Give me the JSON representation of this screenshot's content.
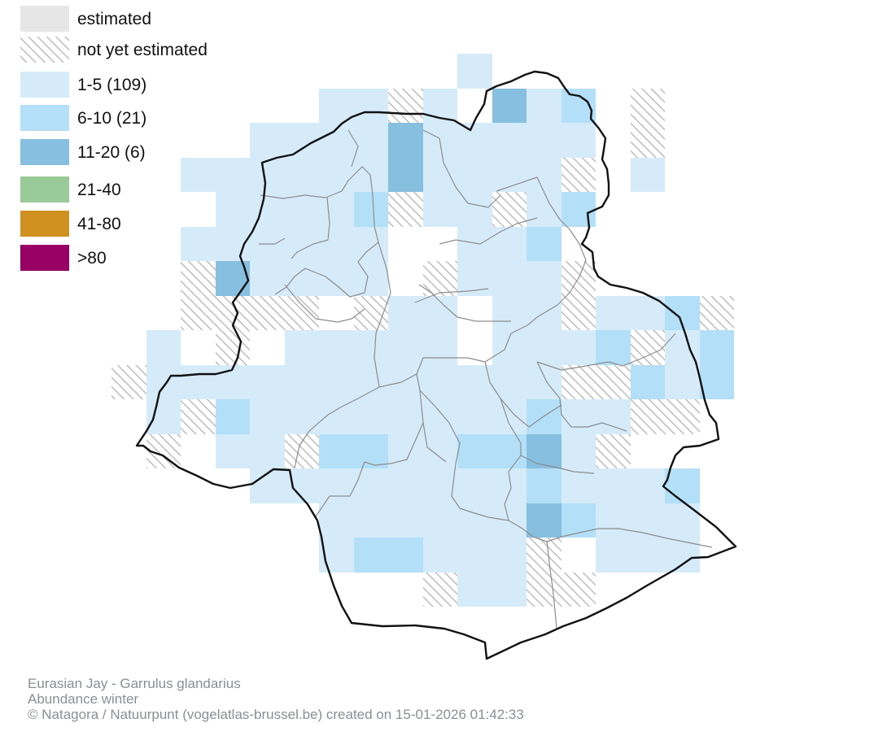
{
  "legend": {
    "items": [
      {
        "label": "estimated",
        "fill": "#e6e6e6",
        "pattern": false
      },
      {
        "label": "not yet estimated",
        "fill": "hatch",
        "pattern": true
      },
      {
        "label": "1-5 (109)",
        "fill": "#d6ebfa",
        "pattern": false
      },
      {
        "label": "6-10 (21)",
        "fill": "#b3e0f8",
        "pattern": false
      },
      {
        "label": "11-20 (6)",
        "fill": "#86bfdf",
        "pattern": false
      },
      {
        "label": "21-40",
        "fill": "#98cb98",
        "pattern": false
      },
      {
        "label": "41-80",
        "fill": "#cf9020",
        "pattern": false
      },
      {
        "label": ">80",
        "fill": "#990066",
        "pattern": false
      }
    ]
  },
  "colors": {
    "class1": "#d6ebfa",
    "class2": "#b3e0f8",
    "class3": "#86bfdf",
    "hatch_stroke": "#bdbdbd",
    "boundary": "#111111",
    "municipality": "#8d8d8d"
  },
  "caption": {
    "species": "Eurasian Jay - Garrulus glandarius",
    "subtitle": "Abundance winter",
    "credit": "© Natagora / Natuurpunt (vogelatlas-brussel.be) created on 15-01-2026 01:42:33"
  }
}
